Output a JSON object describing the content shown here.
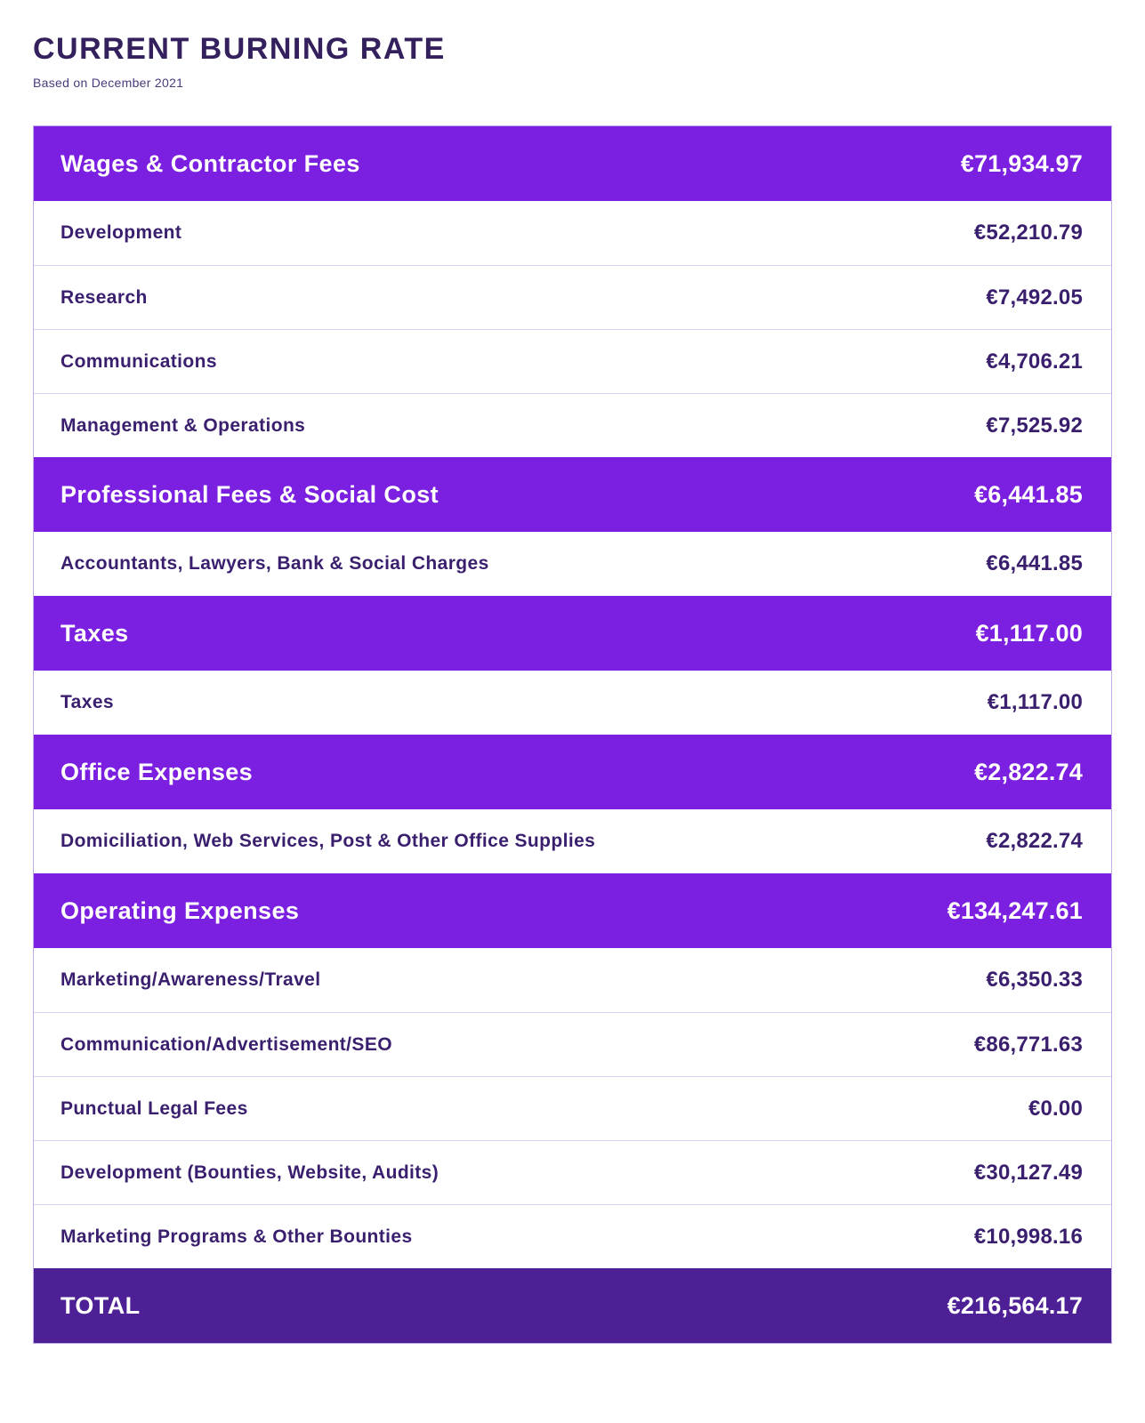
{
  "page": {
    "title": "CURRENT BURNING RATE",
    "subtitle": "Based on December 2021"
  },
  "colors": {
    "category_header_bg": "#7b1fe0",
    "total_bg": "#4e2095",
    "item_text": "#3a1f6e",
    "title_text": "#33205c"
  },
  "table": {
    "rows": [
      {
        "type": "header",
        "label": "Wages & Contractor Fees",
        "value": "€71,934.97"
      },
      {
        "type": "item",
        "label": "Development",
        "value": "€52,210.79"
      },
      {
        "type": "item",
        "label": "Research",
        "value": "€7,492.05"
      },
      {
        "type": "item",
        "label": "Communications",
        "value": "€4,706.21"
      },
      {
        "type": "item",
        "label": "Management & Operations",
        "value": "€7,525.92"
      },
      {
        "type": "header",
        "label": "Professional Fees & Social Cost",
        "value": "€6,441.85"
      },
      {
        "type": "item",
        "label": "Accountants, Lawyers, Bank & Social Charges",
        "value": "€6,441.85"
      },
      {
        "type": "header",
        "label": "Taxes",
        "value": "€1,117.00"
      },
      {
        "type": "item",
        "label": "Taxes",
        "value": "€1,117.00"
      },
      {
        "type": "header",
        "label": "Office Expenses",
        "value": "€2,822.74"
      },
      {
        "type": "item",
        "label": "Domiciliation, Web Services, Post & Other Office Supplies",
        "value": "€2,822.74"
      },
      {
        "type": "header",
        "label": "Operating Expenses",
        "value": "€134,247.61"
      },
      {
        "type": "item",
        "label": "Marketing/Awareness/Travel",
        "value": "€6,350.33"
      },
      {
        "type": "item",
        "label": "Communication/Advertisement/SEO",
        "value": "€86,771.63"
      },
      {
        "type": "item",
        "label": "Punctual Legal Fees",
        "value": "€0.00"
      },
      {
        "type": "item",
        "label": "Development (Bounties, Website, Audits)",
        "value": "€30,127.49"
      },
      {
        "type": "item",
        "label": "Marketing Programs & Other Bounties",
        "value": "€10,998.16"
      },
      {
        "type": "total",
        "label": "TOTAL",
        "value": "€216,564.17"
      }
    ]
  }
}
